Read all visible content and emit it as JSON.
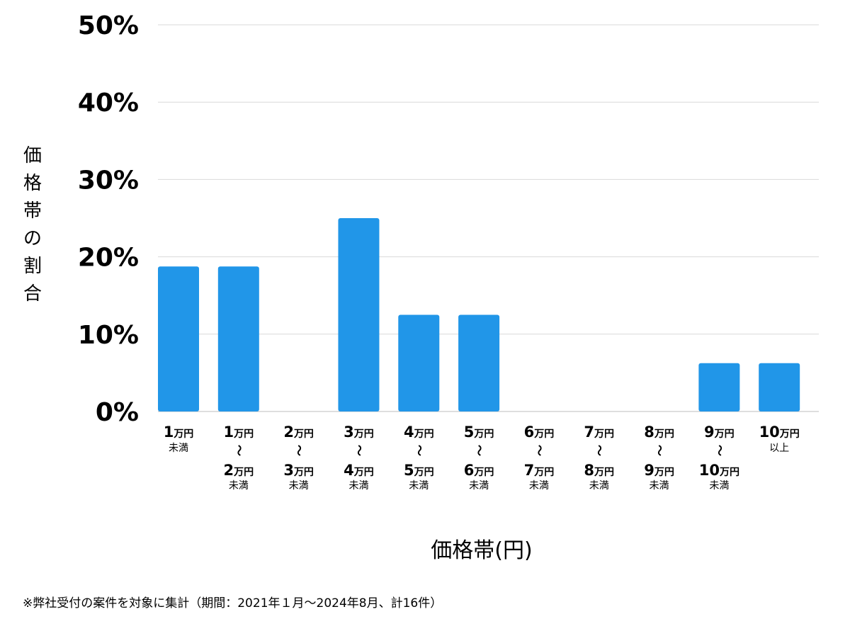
{
  "chart_data": {
    "type": "bar",
    "xlabel": "価格帯(円)",
    "ylabel": "価格帯の割合",
    "ylim": [
      0,
      50
    ],
    "yticks": [
      "0%",
      "10%",
      "20%",
      "30%",
      "40%",
      "50%"
    ],
    "grid": true,
    "bar_color": "#2196E8",
    "categories": [
      "1万円未満",
      "1万円〜2万円未満",
      "2万円〜3万円未満",
      "3万円〜4万円未満",
      "4万円〜5万円未満",
      "5万円〜6万円未満",
      "6万円〜7万円未満",
      "7万円〜8万円未満",
      "8万円〜9万円未満",
      "9万円〜10万円未満",
      "10万円以上"
    ],
    "category_labels": [
      {
        "from_num": "1",
        "from_unit": "万円",
        "wave": "",
        "to_num": "",
        "to_unit": "",
        "suffix": "未満"
      },
      {
        "from_num": "1",
        "from_unit": "万円",
        "wave": "〜",
        "to_num": "2",
        "to_unit": "万円",
        "suffix": "未満"
      },
      {
        "from_num": "2",
        "from_unit": "万円",
        "wave": "〜",
        "to_num": "3",
        "to_unit": "万円",
        "suffix": "未満"
      },
      {
        "from_num": "3",
        "from_unit": "万円",
        "wave": "〜",
        "to_num": "4",
        "to_unit": "万円",
        "suffix": "未満"
      },
      {
        "from_num": "4",
        "from_unit": "万円",
        "wave": "〜",
        "to_num": "5",
        "to_unit": "万円",
        "suffix": "未満"
      },
      {
        "from_num": "5",
        "from_unit": "万円",
        "wave": "〜",
        "to_num": "6",
        "to_unit": "万円",
        "suffix": "未満"
      },
      {
        "from_num": "6",
        "from_unit": "万円",
        "wave": "〜",
        "to_num": "7",
        "to_unit": "万円",
        "suffix": "未満"
      },
      {
        "from_num": "7",
        "from_unit": "万円",
        "wave": "〜",
        "to_num": "8",
        "to_unit": "万円",
        "suffix": "未満"
      },
      {
        "from_num": "8",
        "from_unit": "万円",
        "wave": "〜",
        "to_num": "9",
        "to_unit": "万円",
        "suffix": "未満"
      },
      {
        "from_num": "9",
        "from_unit": "万円",
        "wave": "〜",
        "to_num": "10",
        "to_unit": "万円",
        "suffix": "未満"
      },
      {
        "from_num": "10",
        "from_unit": "万円",
        "wave": "",
        "to_num": "",
        "to_unit": "",
        "suffix": "以上"
      }
    ],
    "values": [
      18.75,
      18.75,
      0,
      25,
      12.5,
      12.5,
      0,
      0,
      0,
      6.25,
      6.25
    ]
  },
  "footnote": "※弊社受付の案件を対象に集計（期間：2021年１月〜2024年8月、計16件）"
}
